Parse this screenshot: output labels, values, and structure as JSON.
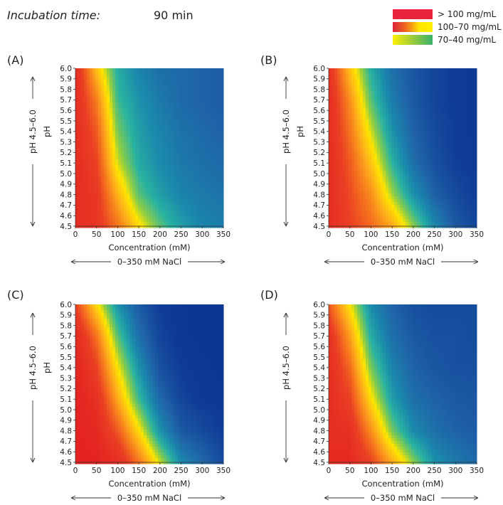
{
  "header": {
    "label": "Incubation time:",
    "value": "90 min"
  },
  "legend": [
    {
      "label": "> 100 mg/mL",
      "colors": [
        "#e8243a",
        "#e8243a"
      ]
    },
    {
      "label": "100–70 mg/mL",
      "colors": [
        "#d9233a",
        "#f06a1f",
        "#ffe500",
        "#ffee00"
      ]
    },
    {
      "label": "70–40 mg/mL",
      "colors": [
        "#ffee00",
        "#9acb3c",
        "#3ab26a"
      ]
    }
  ],
  "colormap": {
    "scale_min": 0,
    "scale_max": 120,
    "stops": [
      {
        "value": 0,
        "color": "#082a8a"
      },
      {
        "value": 15,
        "color": "#0f3c96"
      },
      {
        "value": 28,
        "color": "#1f62a8"
      },
      {
        "value": 40,
        "color": "#1a8aac"
      },
      {
        "value": 50,
        "color": "#2ab3a0"
      },
      {
        "value": 60,
        "color": "#8ccd46"
      },
      {
        "value": 68,
        "color": "#ffe500"
      },
      {
        "value": 78,
        "color": "#ffb21a"
      },
      {
        "value": 90,
        "color": "#f5731e"
      },
      {
        "value": 100,
        "color": "#ea3f23"
      },
      {
        "value": 120,
        "color": "#e21a22"
      }
    ]
  },
  "chart_data": [
    {
      "type": "heatmap",
      "panel": "(A)",
      "xlabel": "Concentration (mM)",
      "ylabel": "pH",
      "x_range_label": "0–350 mM NaCl",
      "y_range_label": "pH 4.5–6.0",
      "xlim": [
        0,
        350
      ],
      "ylim": [
        4.5,
        6.0
      ],
      "x_ticks": [
        "0",
        "50",
        "100",
        "150",
        "200",
        "250",
        "300",
        "350"
      ],
      "y_ticks": [
        "4.5",
        "4.6",
        "4.7",
        "4.8",
        "4.9",
        "5.0",
        "5.1",
        "5.2",
        "5.3",
        "5.4",
        "5.5",
        "5.6",
        "5.7",
        "5.8",
        "5.9",
        "6.0"
      ],
      "x": [
        0,
        50,
        100,
        150,
        200,
        250,
        300,
        350
      ],
      "y": [
        4.5,
        4.8,
        5.1,
        5.4,
        5.7,
        6.0
      ],
      "z_units": "mg/mL",
      "values": [
        [
          110,
          105,
          90,
          70,
          55,
          45,
          38,
          36
        ],
        [
          110,
          104,
          78,
          55,
          45,
          38,
          35,
          33
        ],
        [
          110,
          100,
          65,
          48,
          40,
          35,
          32,
          30
        ],
        [
          110,
          95,
          58,
          45,
          38,
          33,
          30,
          28
        ],
        [
          110,
          88,
          52,
          42,
          35,
          30,
          28,
          26
        ],
        [
          110,
          75,
          48,
          38,
          32,
          30,
          28,
          26
        ]
      ]
    },
    {
      "type": "heatmap",
      "panel": "(B)",
      "xlabel": "Concentration (mM)",
      "ylabel": "pH",
      "x_range_label": "0–350 mM NaCl",
      "y_range_label": "pH 4.5–6.0",
      "xlim": [
        0,
        350
      ],
      "ylim": [
        4.5,
        6.0
      ],
      "x_ticks": [
        "0",
        "50",
        "100",
        "150",
        "200",
        "250",
        "300",
        "350"
      ],
      "y_ticks": [
        "4.5",
        "4.6",
        "4.7",
        "4.8",
        "4.9",
        "5.0",
        "5.1",
        "5.2",
        "5.3",
        "5.4",
        "5.5",
        "5.6",
        "5.7",
        "5.8",
        "5.9",
        "6.0"
      ],
      "x": [
        0,
        50,
        100,
        150,
        200,
        250,
        300,
        350
      ],
      "y": [
        4.5,
        4.8,
        5.1,
        5.4,
        5.7,
        6.0
      ],
      "z_units": "mg/mL",
      "values": [
        [
          110,
          100,
          92,
          80,
          60,
          40,
          25,
          18
        ],
        [
          110,
          98,
          85,
          62,
          42,
          28,
          20,
          15
        ],
        [
          110,
          95,
          75,
          50,
          32,
          22,
          16,
          14
        ],
        [
          110,
          90,
          65,
          42,
          28,
          20,
          15,
          13
        ],
        [
          110,
          85,
          55,
          36,
          25,
          18,
          15,
          13
        ],
        [
          108,
          75,
          48,
          32,
          24,
          18,
          15,
          13
        ]
      ]
    },
    {
      "type": "heatmap",
      "panel": "(C)",
      "xlabel": "Concentration (mM)",
      "ylabel": "pH",
      "x_range_label": "0–350 mM NaCl",
      "y_range_label": "pH 4.5–6.0",
      "xlim": [
        0,
        350
      ],
      "ylim": [
        4.5,
        6.0
      ],
      "x_ticks": [
        "0",
        "50",
        "100",
        "150",
        "200",
        "250",
        "300",
        "350"
      ],
      "y_ticks": [
        "4.5",
        "4.6",
        "4.7",
        "4.8",
        "4.9",
        "5.0",
        "5.1",
        "5.2",
        "5.3",
        "5.4",
        "5.5",
        "5.6",
        "5.7",
        "5.8",
        "5.9",
        "6.0"
      ],
      "x": [
        0,
        50,
        100,
        150,
        200,
        250,
        300,
        350
      ],
      "y": [
        4.5,
        4.8,
        5.1,
        5.4,
        5.7,
        6.0
      ],
      "z_units": "mg/mL",
      "values": [
        [
          115,
          115,
          110,
          90,
          65,
          40,
          30,
          20
        ],
        [
          115,
          112,
          95,
          70,
          42,
          25,
          20,
          15
        ],
        [
          115,
          108,
          80,
          52,
          30,
          18,
          14,
          12
        ],
        [
          115,
          100,
          68,
          42,
          22,
          15,
          12,
          10
        ],
        [
          112,
          90,
          55,
          32,
          18,
          12,
          10,
          10
        ],
        [
          100,
          70,
          42,
          25,
          15,
          12,
          10,
          10
        ]
      ]
    },
    {
      "type": "heatmap",
      "panel": "(D)",
      "xlabel": "Concentration (mM)",
      "ylabel": "",
      "x_range_label": "0–350 mM NaCl",
      "y_range_label": "pH 4.5–6.0",
      "xlim": [
        0,
        350
      ],
      "ylim": [
        4.5,
        6.0
      ],
      "x_ticks": [
        "0",
        "50",
        "100",
        "150",
        "200",
        "250",
        "300",
        "350"
      ],
      "y_ticks": [
        "4.5",
        "4.6",
        "4.7",
        "4.8",
        "4.9",
        "5.0",
        "5.1",
        "5.2",
        "5.3",
        "5.4",
        "5.5",
        "5.6",
        "5.7",
        "5.8",
        "5.9",
        "6.0"
      ],
      "x": [
        0,
        50,
        100,
        150,
        200,
        250,
        300,
        350
      ],
      "y": [
        4.5,
        4.8,
        5.1,
        5.4,
        5.7,
        6.0
      ],
      "z_units": "mg/mL",
      "values": [
        [
          110,
          112,
          100,
          80,
          60,
          42,
          35,
          30
        ],
        [
          110,
          108,
          85,
          58,
          40,
          32,
          28,
          26
        ],
        [
          110,
          100,
          70,
          45,
          32,
          28,
          25,
          24
        ],
        [
          110,
          92,
          58,
          38,
          28,
          24,
          22,
          22
        ],
        [
          108,
          82,
          48,
          32,
          25,
          22,
          22,
          20
        ],
        [
          95,
          68,
          40,
          28,
          22,
          20,
          20,
          20
        ]
      ]
    }
  ]
}
